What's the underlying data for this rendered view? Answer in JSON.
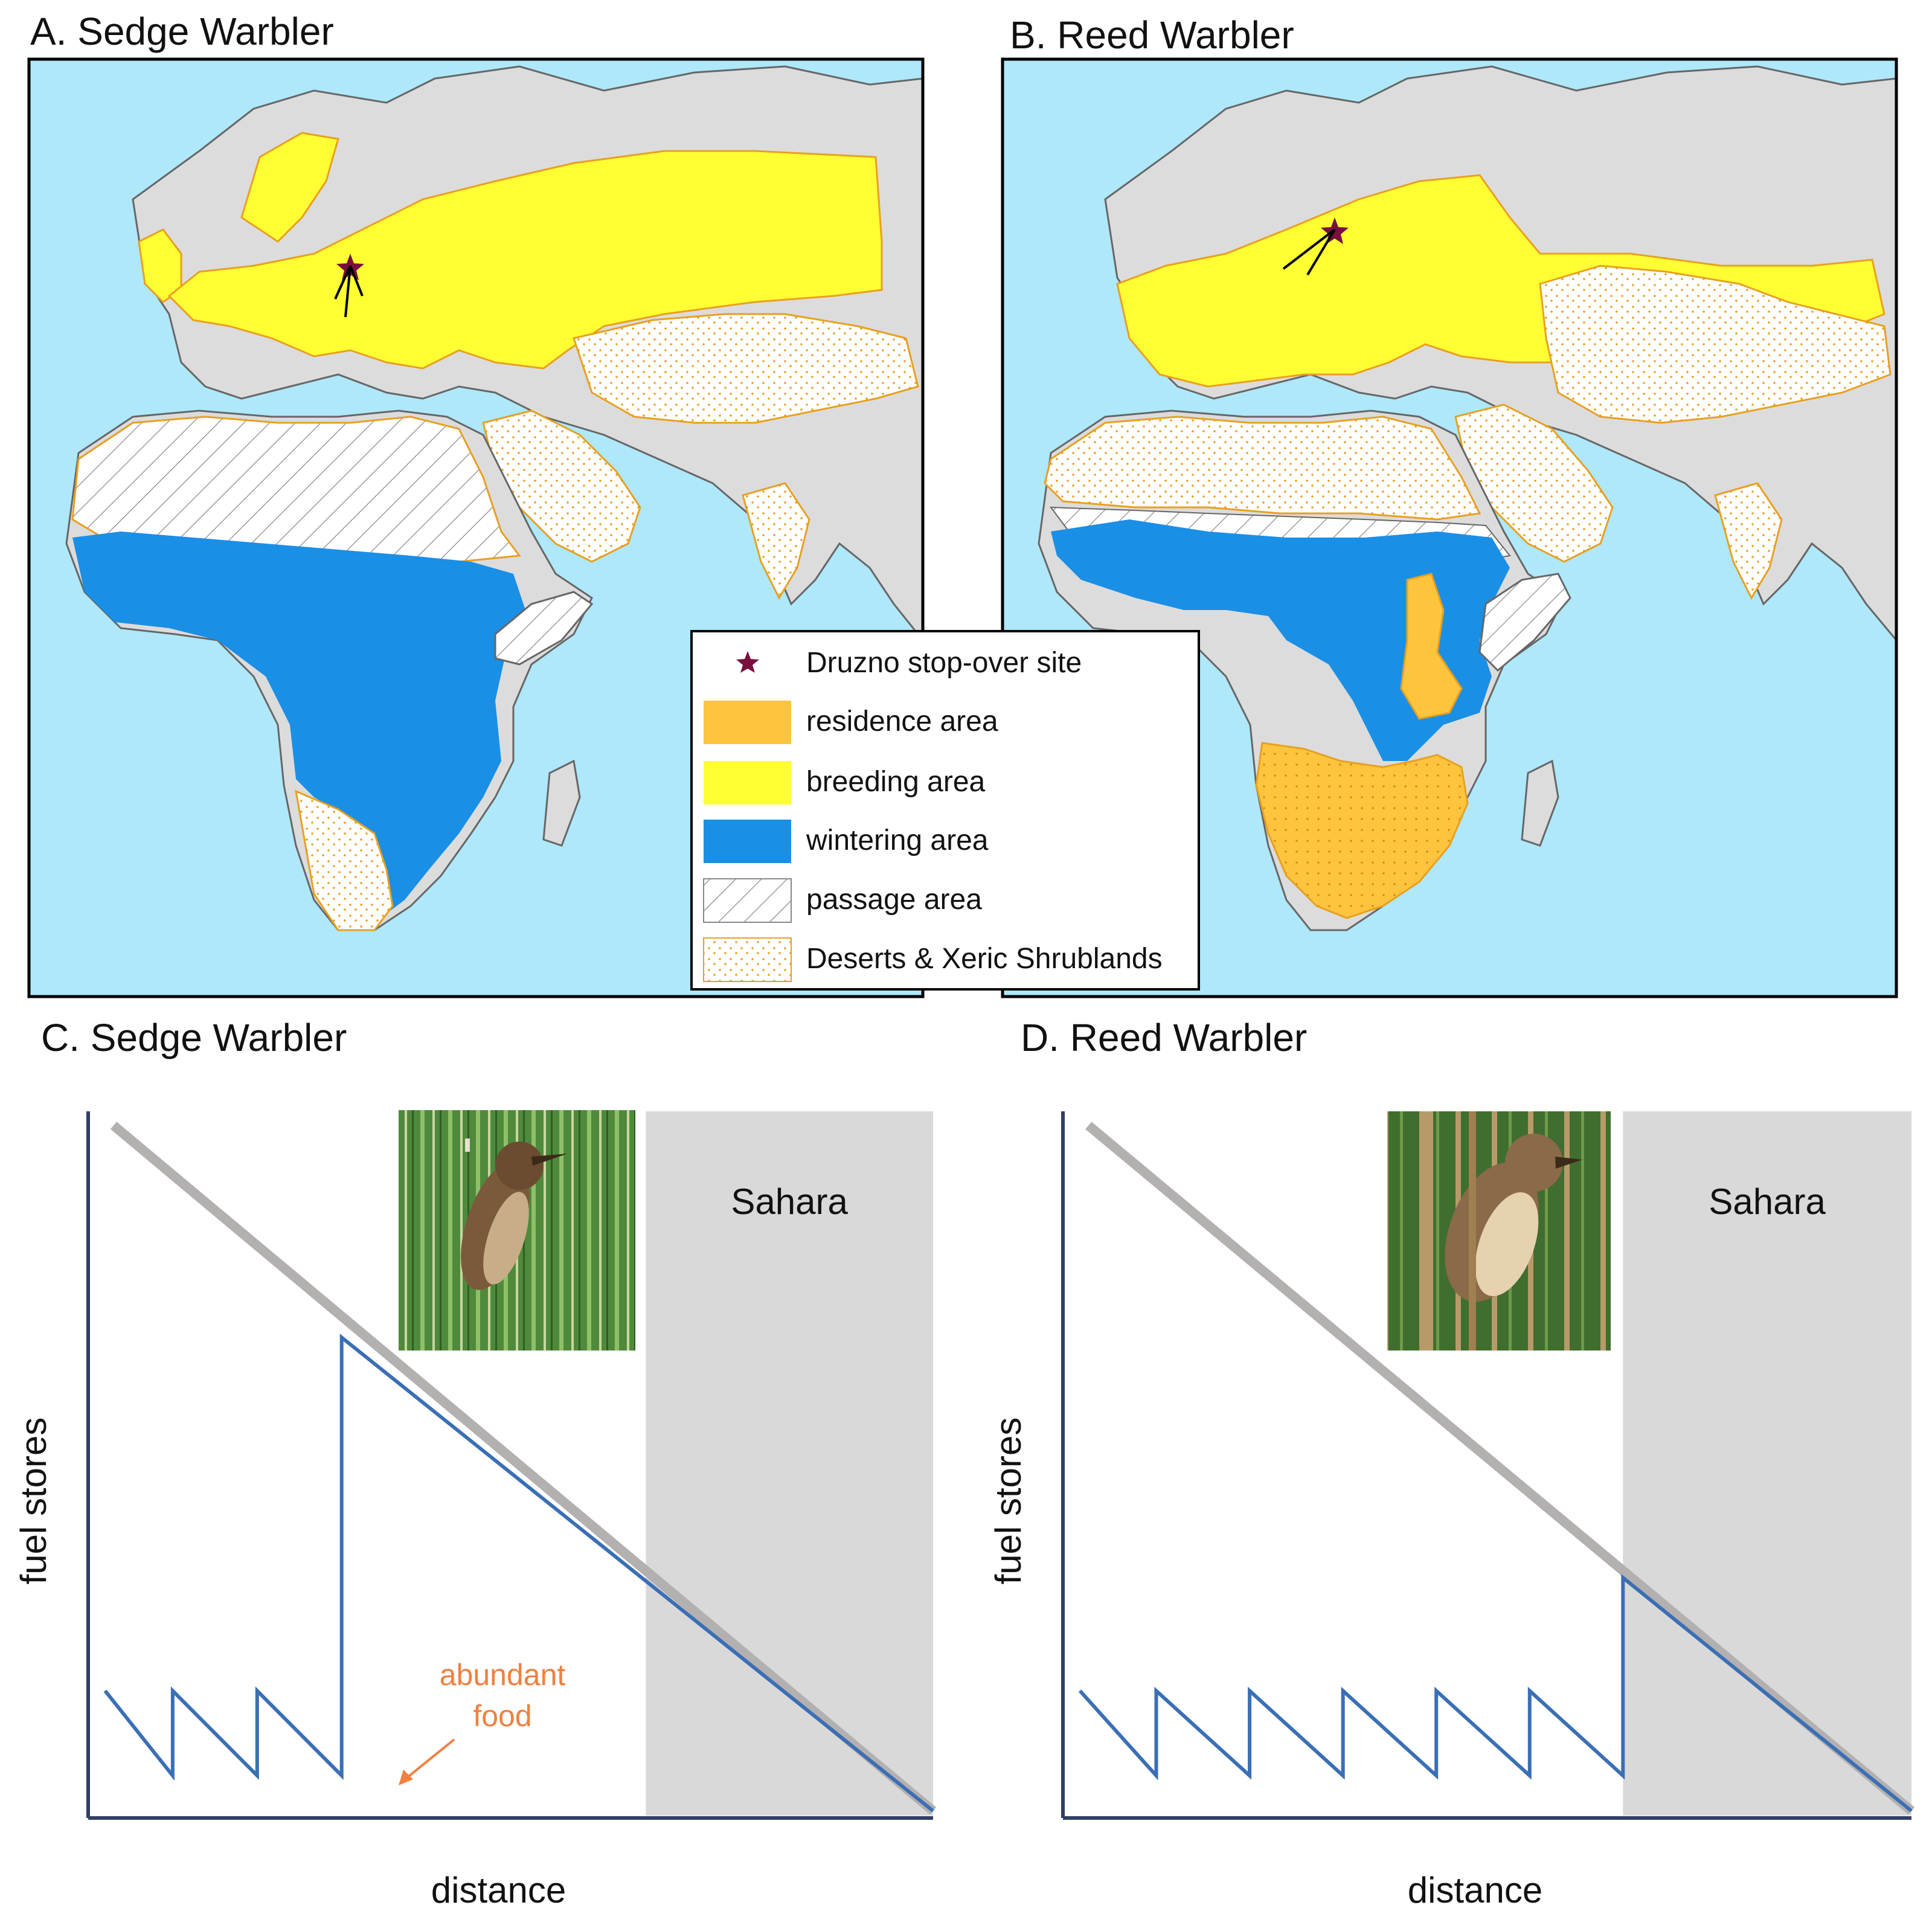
{
  "panels": {
    "a": {
      "title": "A. Sedge Warbler"
    },
    "b": {
      "title": "B. Reed Warbler"
    },
    "c": {
      "title": "C. Sedge Warbler",
      "xlabel": "distance",
      "ylabel": "fuel stores",
      "sahara": "Sahara",
      "annotation_line1": "abundant",
      "annotation_line2": "food"
    },
    "d": {
      "title": "D. Reed Warbler",
      "xlabel": "distance",
      "ylabel": "fuel stores",
      "sahara": "Sahara"
    }
  },
  "legend": {
    "stopover": "Druzno stop-over site",
    "residence": "residence area",
    "breeding": "breeding area",
    "wintering": "wintering area",
    "passage": "passage area",
    "deserts": "Deserts & Xeric Shrublands"
  },
  "colors": {
    "sea": "#aee8fa",
    "land": "#dcdcdc",
    "breeding": "#ffff33",
    "wintering": "#1a8fe6",
    "residence": "#ffc43d",
    "desert_dot": "#e8a020",
    "star": "#7a1040",
    "fuel_line": "#3a6fb5",
    "threshold_line": "#b4b0b0",
    "sahara_band": "#d9d9d9",
    "annotation": "#f08040"
  },
  "icons": {
    "bird_photo_c": "sedge-warbler-photo",
    "bird_photo_d": "reed-warbler-photo"
  },
  "chart_data": [
    {
      "type": "line",
      "title": "C. Sedge Warbler",
      "xlabel": "distance",
      "ylabel": "fuel stores",
      "series": [],
      "fuel_profile": [
        [
          0.02,
          0.18
        ],
        [
          0.1,
          0.06
        ],
        [
          0.1,
          0.18
        ],
        [
          0.2,
          0.06
        ],
        [
          0.2,
          0.18
        ],
        [
          0.3,
          0.06
        ],
        [
          0.3,
          0.68
        ],
        [
          1.0,
          0.01
        ]
      ],
      "threshold": [
        [
          0.03,
          0.98
        ],
        [
          1.0,
          0.01
        ]
      ],
      "sahara_range": [
        0.66,
        1.0
      ]
    },
    {
      "type": "line",
      "title": "D. Reed Warbler",
      "xlabel": "distance",
      "ylabel": "fuel stores",
      "series": [],
      "fuel_profile": [
        [
          0.02,
          0.18
        ],
        [
          0.11,
          0.06
        ],
        [
          0.11,
          0.18
        ],
        [
          0.22,
          0.06
        ],
        [
          0.22,
          0.18
        ],
        [
          0.33,
          0.06
        ],
        [
          0.33,
          0.18
        ],
        [
          0.44,
          0.06
        ],
        [
          0.44,
          0.18
        ],
        [
          0.55,
          0.06
        ],
        [
          0.55,
          0.18
        ],
        [
          0.66,
          0.06
        ],
        [
          0.66,
          0.34
        ],
        [
          1.0,
          0.01
        ]
      ],
      "threshold": [
        [
          0.03,
          0.98
        ],
        [
          1.0,
          0.01
        ]
      ],
      "sahara_range": [
        0.66,
        1.0
      ]
    }
  ]
}
